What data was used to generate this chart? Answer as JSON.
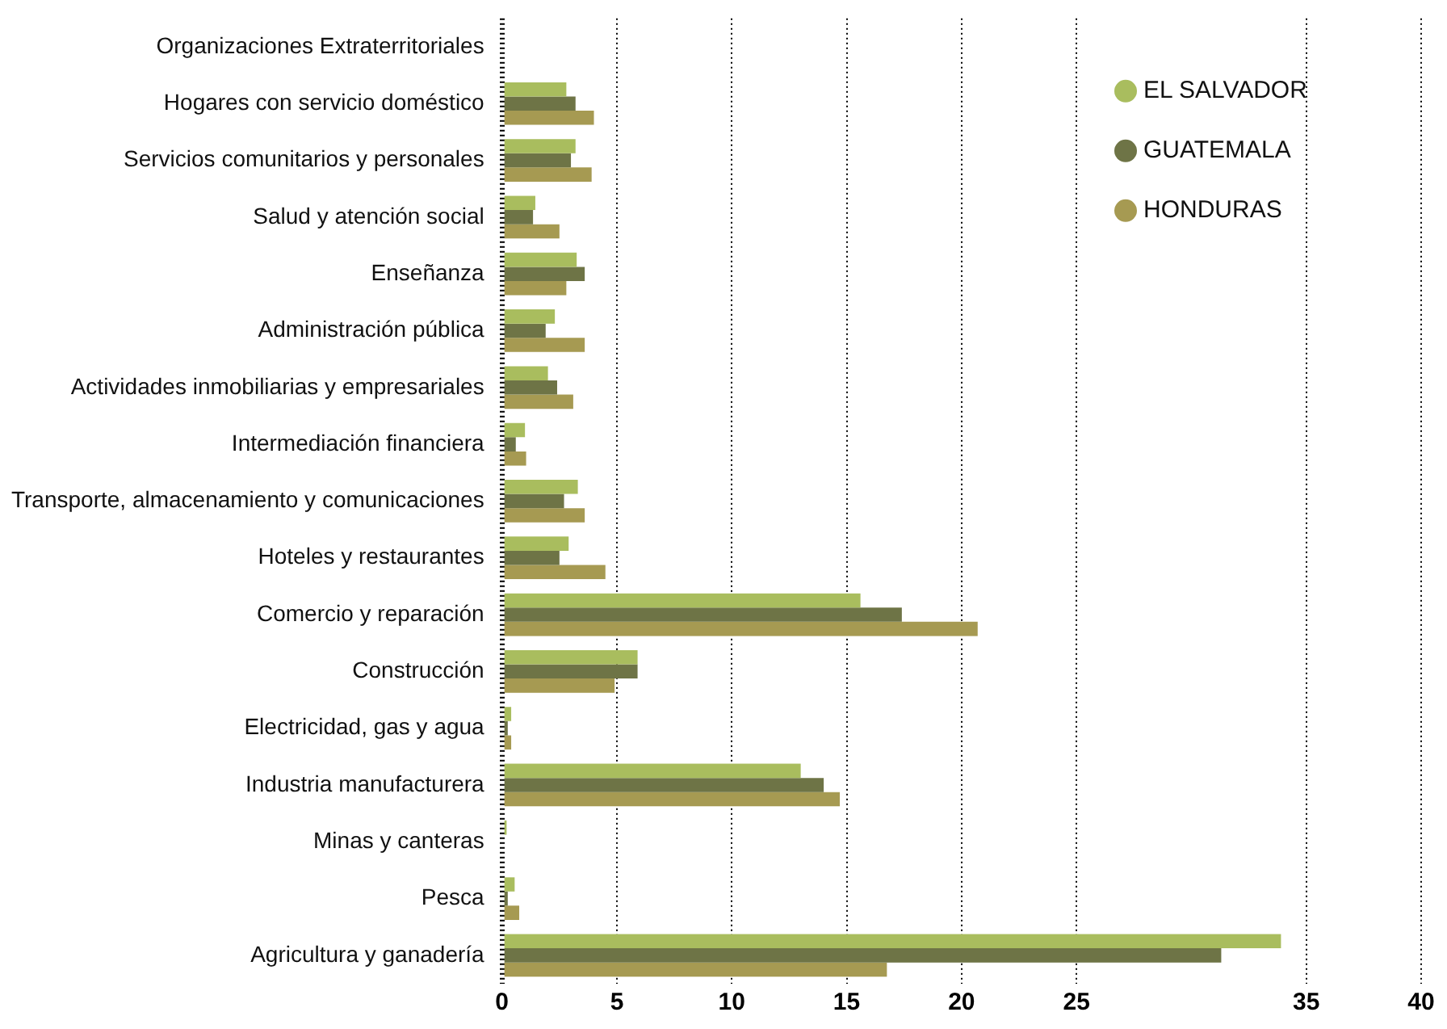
{
  "chart_data": {
    "type": "bar",
    "orientation": "horizontal",
    "categories": [
      "Organizaciones Extraterritoriales",
      "Hogares con servicio doméstico",
      "Servicios comunitarios y personales",
      "Salud y atención social",
      "Enseñanza",
      "Administración pública",
      "Actividades inmobiliarias y empresariales",
      "Intermediación financiera",
      "Transporte, almacenamiento y comunicaciones",
      "Hoteles y restaurantes",
      "Comercio y reparación",
      "Construcción",
      "Electricidad, gas y agua",
      "Industria manufacturera",
      "Minas y canteras",
      "Pesca",
      "Agricultura y ganadería"
    ],
    "series": [
      {
        "name": "EL SALVADOR",
        "color": "#a9bd5e",
        "values": [
          null,
          2.8,
          3.2,
          1.45,
          3.25,
          2.3,
          2.0,
          1.0,
          3.3,
          2.9,
          15.6,
          5.9,
          0.4,
          13.0,
          0.2,
          0.55,
          33.9
        ]
      },
      {
        "name": "GUATEMALA",
        "color": "#6e7446",
        "values": [
          null,
          3.2,
          3.0,
          1.35,
          3.6,
          1.9,
          2.4,
          0.6,
          2.7,
          2.5,
          17.4,
          5.9,
          0.25,
          14.0,
          null,
          0.25,
          31.3
        ]
      },
      {
        "name": "HONDURAS",
        "color": "#a69a52",
        "values": [
          0,
          4.0,
          3.9,
          2.5,
          2.8,
          3.6,
          3.1,
          1.05,
          3.6,
          4.5,
          20.7,
          4.9,
          0.4,
          14.7,
          null,
          0.75,
          16.75
        ]
      }
    ],
    "xlim": [
      0,
      40
    ],
    "xticks": [
      0,
      5,
      10,
      15,
      20,
      25,
      35,
      40
    ],
    "grid": "x",
    "legend": "top right",
    "marker": "circle"
  }
}
